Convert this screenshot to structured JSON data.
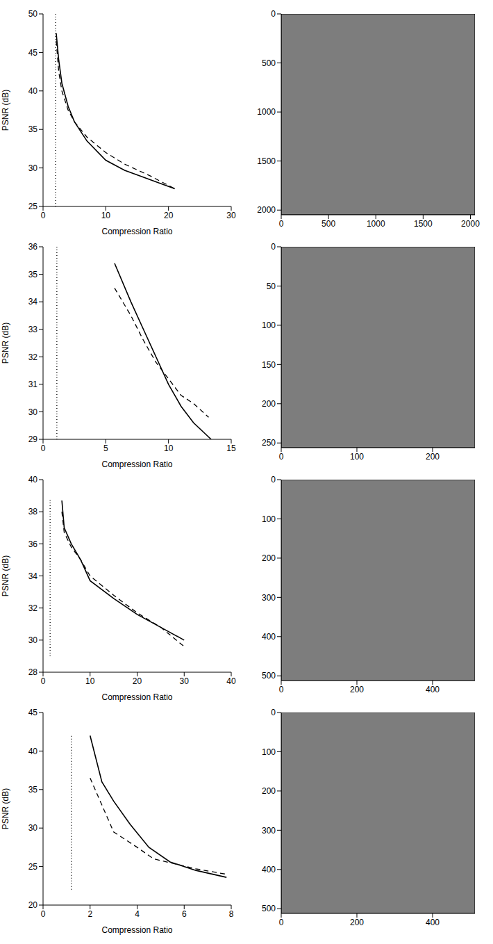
{
  "chart_data": [
    {
      "type": "line",
      "x_label": "Compression Ratio",
      "y_label": "PSNR (dB)",
      "xlim": [
        0,
        30
      ],
      "xticks": [
        0,
        10,
        20,
        30
      ],
      "ylim": [
        25,
        50
      ],
      "yticks": [
        25,
        30,
        35,
        40,
        45,
        50
      ],
      "series": [
        {
          "color": "#000000",
          "line_style": "solid",
          "x": [
            2.1,
            2.5,
            3,
            4,
            5,
            7,
            10,
            13,
            17,
            21
          ],
          "values": [
            47.5,
            44,
            41,
            38,
            36,
            33.5,
            31,
            29.7,
            28.5,
            27.3
          ]
        },
        {
          "color": "#000000",
          "line_style": "dashed",
          "x": [
            2.1,
            2.5,
            3,
            4,
            5,
            7,
            10,
            13,
            17,
            21
          ],
          "values": [
            46.5,
            42.5,
            40,
            37.5,
            36,
            34,
            32,
            30.5,
            29,
            27.3
          ]
        },
        {
          "color": "#000000",
          "line_style": "dotted",
          "x": [
            2,
            2
          ],
          "values": [
            25,
            50
          ]
        }
      ]
    },
    {
      "type": "image",
      "xlim": [
        0,
        2048
      ],
      "xticks": [
        0,
        500,
        1000,
        1500,
        2000
      ],
      "ylim": [
        0,
        2048
      ],
      "yticks": [
        0,
        500,
        1000,
        1500,
        2000
      ]
    },
    {
      "type": "line",
      "x_label": "Compression Ratio",
      "y_label": "PSNR (dB)",
      "xlim": [
        0,
        15
      ],
      "xticks": [
        0,
        5,
        10,
        15
      ],
      "ylim": [
        29,
        36
      ],
      "yticks": [
        29,
        30,
        31,
        32,
        33,
        34,
        35,
        36
      ],
      "series": [
        {
          "color": "#000000",
          "line_style": "solid",
          "x": [
            5.7,
            7,
            8,
            9,
            10,
            11,
            12,
            13.4
          ],
          "values": [
            35.4,
            34,
            33,
            32,
            31,
            30.2,
            29.6,
            29
          ]
        },
        {
          "color": "#000000",
          "line_style": "dashed",
          "x": [
            5.7,
            7,
            8,
            9,
            10,
            11,
            12,
            13.2
          ],
          "values": [
            34.5,
            33.5,
            32.6,
            31.8,
            31.2,
            30.6,
            30.3,
            29.8
          ]
        },
        {
          "color": "#000000",
          "line_style": "dotted",
          "x": [
            1.1,
            1.1
          ],
          "values": [
            29,
            36
          ]
        }
      ]
    },
    {
      "type": "image",
      "xlim": [
        0,
        256
      ],
      "xticks": [
        0,
        100,
        200
      ],
      "ylim": [
        0,
        256
      ],
      "yticks": [
        0,
        50,
        100,
        150,
        200,
        250
      ]
    },
    {
      "type": "line",
      "x_label": "Compression Ratio",
      "y_label": "PSNR (dB)",
      "xlim": [
        0,
        40
      ],
      "xticks": [
        0,
        10,
        20,
        30,
        40
      ],
      "ylim": [
        28,
        40
      ],
      "yticks": [
        28,
        30,
        32,
        34,
        36,
        38,
        40
      ],
      "series": [
        {
          "color": "#000000",
          "line_style": "solid",
          "x": [
            4,
            4.5,
            6,
            8,
            10,
            15,
            20,
            25,
            30
          ],
          "values": [
            38.7,
            37,
            36,
            35,
            33.7,
            32.6,
            31.6,
            30.8,
            30
          ]
        },
        {
          "color": "#000000",
          "line_style": "dashed",
          "x": [
            4,
            4.5,
            6,
            8,
            10,
            15,
            20,
            25,
            30
          ],
          "values": [
            38,
            36.7,
            35.8,
            35,
            34,
            32.8,
            31.7,
            30.8,
            29.6
          ]
        },
        {
          "color": "#000000",
          "line_style": "dotted",
          "x": [
            1.5,
            1.5
          ],
          "values": [
            29,
            38.8
          ]
        }
      ]
    },
    {
      "type": "image",
      "xlim": [
        0,
        512
      ],
      "xticks": [
        0,
        200,
        400
      ],
      "ylim": [
        0,
        512
      ],
      "yticks": [
        0,
        100,
        200,
        300,
        400,
        500
      ]
    },
    {
      "type": "line",
      "x_label": "Compression Ratio",
      "y_label": "PSNR (dB)",
      "xlim": [
        0,
        8
      ],
      "xticks": [
        0,
        2,
        4,
        6,
        8
      ],
      "ylim": [
        20,
        45
      ],
      "yticks": [
        20,
        25,
        30,
        35,
        40,
        45
      ],
      "series": [
        {
          "color": "#000000",
          "line_style": "solid",
          "x": [
            2,
            2.5,
            3,
            3.7,
            4.5,
            5.4,
            6.5,
            7.8
          ],
          "values": [
            42,
            36,
            33.5,
            30.5,
            27.5,
            25.6,
            24.5,
            23.6
          ]
        },
        {
          "color": "#000000",
          "line_style": "dashed",
          "x": [
            2,
            3,
            4,
            4.7,
            5.4,
            6.5,
            7.8
          ],
          "values": [
            36.5,
            29.5,
            27.5,
            26,
            25.5,
            24.7,
            24
          ]
        },
        {
          "color": "#000000",
          "line_style": "dotted",
          "x": [
            1.2,
            1.2
          ],
          "values": [
            22,
            42
          ]
        }
      ]
    },
    {
      "type": "image",
      "xlim": [
        0,
        512
      ],
      "xticks": [
        0,
        200,
        400
      ],
      "ylim": [
        0,
        512
      ],
      "yticks": [
        0,
        100,
        200,
        300,
        400,
        500
      ]
    }
  ]
}
